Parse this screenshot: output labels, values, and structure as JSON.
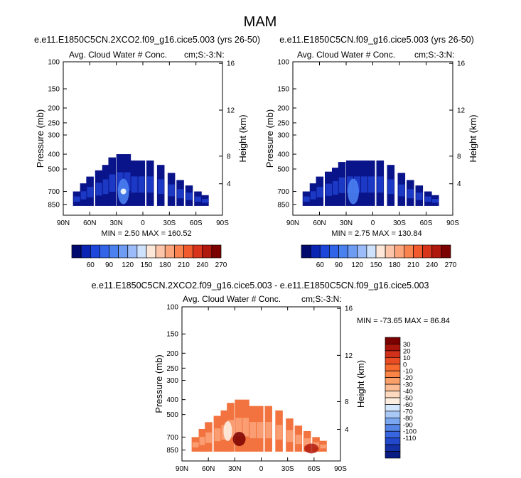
{
  "figure": {
    "title": "MAM"
  },
  "panels": [
    {
      "case_title": "e.e11.E1850C5CN.2XCO2.f09_g16.cice5.003 (yrs 26-50)",
      "left_label": "Avg. Cloud Water # Conc.",
      "right_label": "cm;S:-3:N:",
      "stats": "MIN =  2.50  MAX = 160.52"
    },
    {
      "case_title": "e.e11.E1850C5CN.f09_g16.cice5.003 (yrs 26-50)",
      "left_label": "Avg. Cloud Water # Conc.",
      "right_label": "cm;S:-3:N:",
      "stats": "MIN =  2.75  MAX = 130.84"
    },
    {
      "case_title": "e.e11.E1850C5CN.2XCO2.f09_g16.cice5.003 - e.e11.E1850C5CN.f09_g16.cice5.003",
      "left_label": "Avg. Cloud Water # Conc.",
      "right_label": "cm;S:-3:N:",
      "stats": "MIN = -73.65  MAX =  86.84"
    }
  ],
  "chart_data": [
    {
      "type": "heatmap",
      "title": "e.e11.E1850C5CN.2XCO2.f09_g16.cice5.003 (yrs 26-50)",
      "xlabel": "",
      "ylabel": "Pressure (mb)",
      "y2label": "Height (km)",
      "x_ticks": [
        "90N",
        "60N",
        "30N",
        "0",
        "30S",
        "60S",
        "90S"
      ],
      "y_ticks": [
        "100",
        "150",
        "200",
        "250",
        "300",
        "400",
        "500",
        "700",
        "850"
      ],
      "y2_ticks": [
        "4",
        "8",
        "12",
        "16"
      ],
      "min": 2.5,
      "max": 160.52,
      "colorbar_labels": [
        "60",
        "90",
        "120",
        "150",
        "180",
        "210",
        "240",
        "270"
      ],
      "colorbar_colors": [
        "#030a6e",
        "#0a24b4",
        "#1d47db",
        "#3164e7",
        "#4b80ef",
        "#6f9cf3",
        "#9bbcf8",
        "#cfe2fc",
        "#fde7d8",
        "#fcc5a9",
        "#fca57d",
        "#f9834f",
        "#f05a2c",
        "#d8341b",
        "#b0170d",
        "#7b0000"
      ],
      "region_columns": [
        [
          -75,
          870,
          700
        ],
        [
          -67,
          870,
          620
        ],
        [
          -60,
          870,
          560
        ],
        [
          -50,
          870,
          510
        ],
        [
          -42,
          870,
          470
        ],
        [
          -35,
          870,
          420
        ],
        [
          -26,
          870,
          400
        ],
        [
          -18,
          870,
          400
        ],
        [
          -10,
          870,
          440
        ],
        [
          -2,
          870,
          440
        ],
        [
          8,
          870,
          440
        ],
        [
          20,
          870,
          470
        ],
        [
          32,
          870,
          530
        ],
        [
          42,
          870,
          590
        ],
        [
          52,
          870,
          640
        ],
        [
          62,
          870,
          700
        ],
        [
          70,
          870,
          740
        ]
      ]
    },
    {
      "type": "heatmap",
      "title": "e.e11.E1850C5CN.f09_g16.cice5.003 (yrs 26-50)",
      "xlabel": "",
      "ylabel": "Pressure (mb)",
      "y2label": "Height (km)",
      "x_ticks": [
        "90N",
        "60N",
        "30N",
        "0",
        "30S",
        "60S",
        "90S"
      ],
      "y_ticks": [
        "100",
        "150",
        "200",
        "250",
        "300",
        "400",
        "500",
        "700",
        "850"
      ],
      "y2_ticks": [
        "4",
        "8",
        "12",
        "16"
      ],
      "min": 2.75,
      "max": 130.84,
      "colorbar_labels": [
        "60",
        "90",
        "120",
        "150",
        "180",
        "210",
        "240",
        "270"
      ],
      "colorbar_colors": [
        "#030a6e",
        "#0a24b4",
        "#1d47db",
        "#3164e7",
        "#4b80ef",
        "#6f9cf3",
        "#9bbcf8",
        "#cfe2fc",
        "#fde7d8",
        "#fcc5a9",
        "#fca57d",
        "#f9834f",
        "#f05a2c",
        "#d8341b",
        "#b0170d",
        "#7b0000"
      ],
      "region_columns": [
        [
          -75,
          870,
          700
        ],
        [
          -67,
          870,
          620
        ],
        [
          -60,
          870,
          560
        ],
        [
          -50,
          870,
          520
        ],
        [
          -42,
          870,
          490
        ],
        [
          -35,
          870,
          450
        ],
        [
          -26,
          870,
          440
        ],
        [
          -18,
          870,
          440
        ],
        [
          -10,
          870,
          440
        ],
        [
          -2,
          870,
          440
        ],
        [
          8,
          870,
          440
        ],
        [
          20,
          870,
          470
        ],
        [
          32,
          870,
          530
        ],
        [
          42,
          870,
          590
        ],
        [
          52,
          870,
          640
        ],
        [
          62,
          870,
          700
        ],
        [
          70,
          870,
          740
        ]
      ]
    },
    {
      "type": "heatmap",
      "title": "e.e11.E1850C5CN.2XCO2.f09_g16.cice5.003 - e.e11.E1850C5CN.f09_g16.cice5.003",
      "xlabel": "",
      "ylabel": "Pressure (mb)",
      "y2label": "Height (km)",
      "x_ticks": [
        "90N",
        "60N",
        "30N",
        "0",
        "30S",
        "60S",
        "90S"
      ],
      "y_ticks": [
        "100",
        "150",
        "200",
        "250",
        "300",
        "400",
        "500",
        "700",
        "850"
      ],
      "y2_ticks": [
        "4",
        "8",
        "12",
        "16"
      ],
      "min": -73.65,
      "max": 86.84,
      "colorbar_labels": [
        "30",
        "20",
        "10",
        "0",
        "-10",
        "-20",
        "-30",
        "-40",
        "-50",
        "-60",
        "-70",
        "-80",
        "-90",
        "-100",
        "-110"
      ],
      "colorbar_colors": [
        "#7b0000",
        "#a8140a",
        "#d1301a",
        "#ea4d24",
        "#f6692f",
        "#fa8446",
        "#fb9f6a",
        "#fcbd94",
        "#fdd9bf",
        "#fdeee0",
        "#d3e6fb",
        "#aac8f6",
        "#7ba6f0",
        "#5685e8",
        "#3866e0",
        "#2248cb",
        "#1430a7",
        "#0a1c84"
      ],
      "region_columns": [
        [
          -75,
          870,
          700
        ],
        [
          -67,
          870,
          620
        ],
        [
          -60,
          870,
          560
        ],
        [
          -50,
          870,
          510
        ],
        [
          -42,
          870,
          470
        ],
        [
          -35,
          870,
          420
        ],
        [
          -26,
          870,
          400
        ],
        [
          -18,
          870,
          400
        ],
        [
          -10,
          870,
          440
        ],
        [
          -2,
          870,
          440
        ],
        [
          8,
          870,
          440
        ],
        [
          20,
          870,
          470
        ],
        [
          32,
          870,
          530
        ],
        [
          42,
          870,
          590
        ],
        [
          52,
          870,
          640
        ],
        [
          62,
          870,
          700
        ],
        [
          70,
          870,
          740
        ]
      ]
    }
  ]
}
